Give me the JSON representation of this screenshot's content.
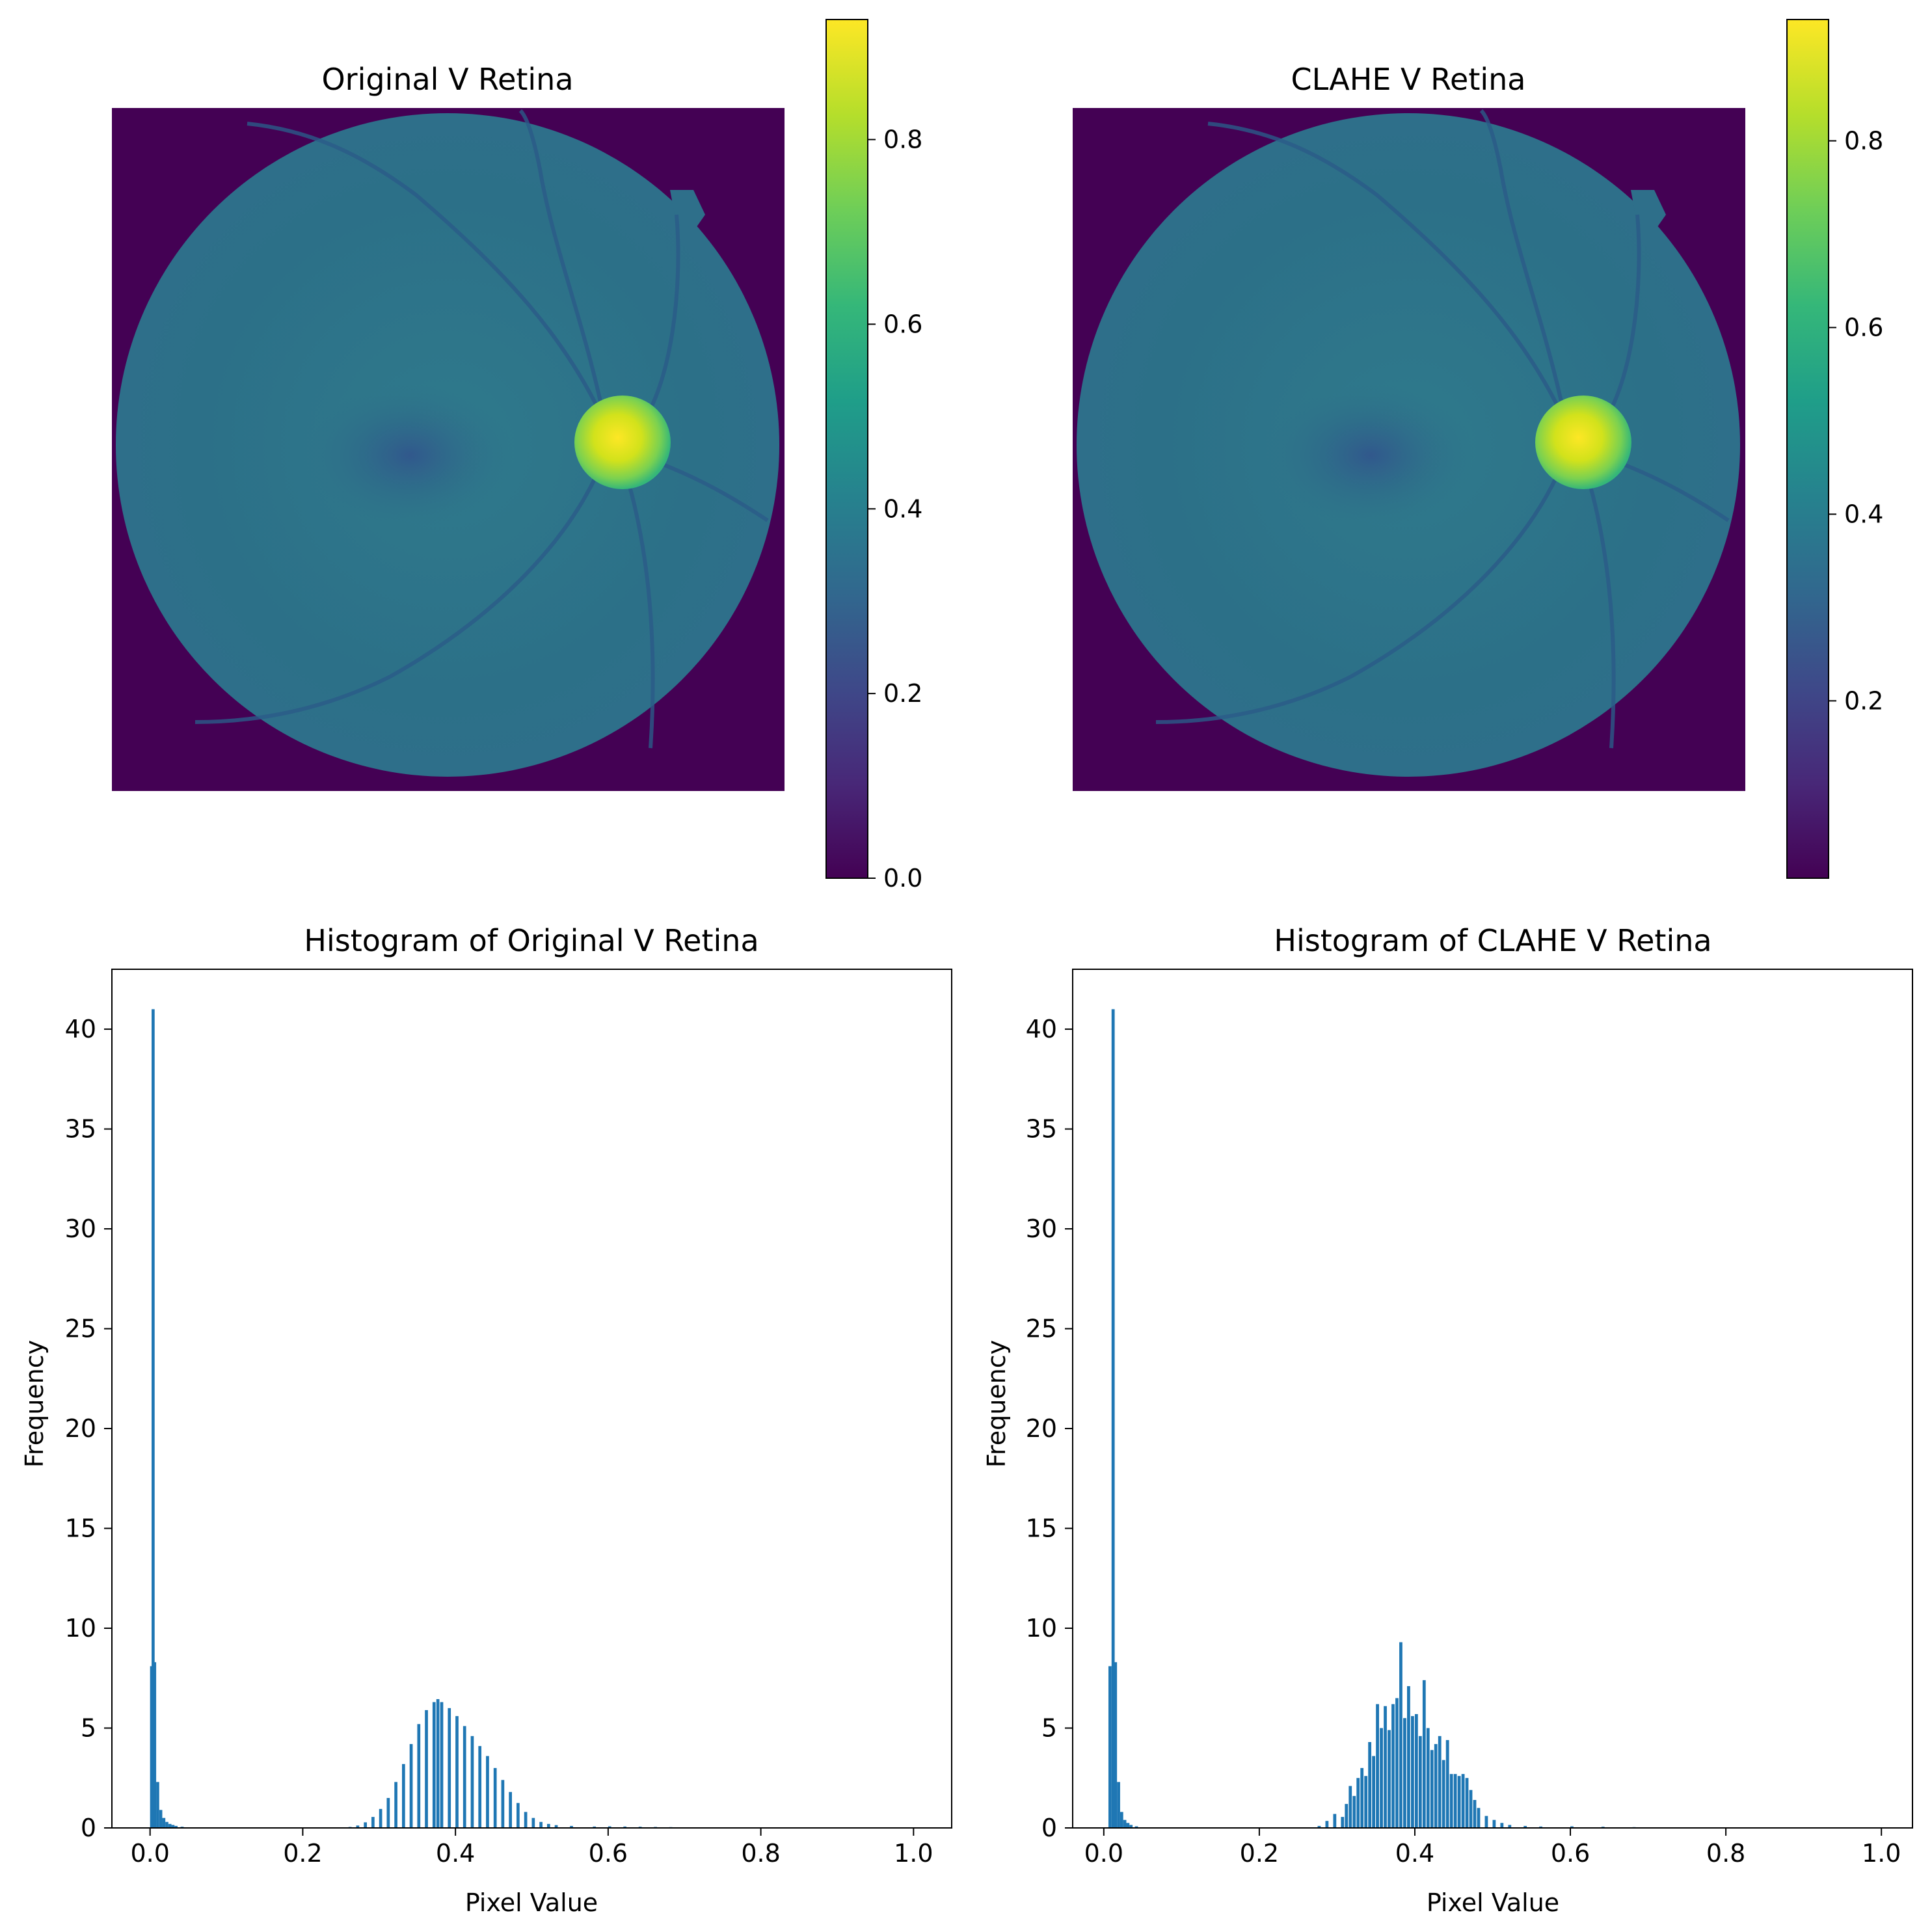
{
  "colors": {
    "bar": "#1f77b4",
    "background_mask": "#440154",
    "viridis": [
      "#440154",
      "#482878",
      "#3e4989",
      "#31688e",
      "#26828e",
      "#1f9e89",
      "#35b779",
      "#6ece58",
      "#b5de2b",
      "#fde725"
    ]
  },
  "images": [
    {
      "title": "Original V Retina",
      "colorbar": {
        "ticks": [
          "0.0",
          "0.2",
          "0.4",
          "0.6",
          "0.8"
        ],
        "range": [
          0.0,
          0.93
        ]
      }
    },
    {
      "title": "CLAHE V Retina",
      "colorbar": {
        "ticks": [
          "0.2",
          "0.4",
          "0.6",
          "0.8"
        ],
        "range": [
          0.01,
          0.93
        ]
      }
    }
  ],
  "chart_data": [
    {
      "type": "bar",
      "title": "Histogram of Original V Retina",
      "xlabel": "Pixel Value",
      "ylabel": "Frequency",
      "xlim": [
        -0.05,
        1.05
      ],
      "ylim": [
        0,
        43
      ],
      "xticks": [
        "0.0",
        "0.2",
        "0.4",
        "0.6",
        "0.8",
        "1.0"
      ],
      "yticks": [
        "0",
        "5",
        "10",
        "15",
        "20",
        "25",
        "30",
        "35",
        "40"
      ],
      "bin_width": 0.004,
      "values": [
        [
          0.0,
          8.1
        ],
        [
          0.002,
          41.0
        ],
        [
          0.004,
          8.3
        ],
        [
          0.008,
          2.3
        ],
        [
          0.012,
          0.9
        ],
        [
          0.016,
          0.5
        ],
        [
          0.02,
          0.3
        ],
        [
          0.024,
          0.2
        ],
        [
          0.028,
          0.15
        ],
        [
          0.032,
          0.1
        ],
        [
          0.04,
          0.06
        ],
        [
          0.05,
          0.03
        ],
        [
          0.26,
          0.05
        ],
        [
          0.27,
          0.12
        ],
        [
          0.28,
          0.28
        ],
        [
          0.29,
          0.55
        ],
        [
          0.3,
          0.95
        ],
        [
          0.31,
          1.5
        ],
        [
          0.32,
          2.3
        ],
        [
          0.33,
          3.2
        ],
        [
          0.34,
          4.2
        ],
        [
          0.35,
          5.2
        ],
        [
          0.36,
          5.9
        ],
        [
          0.37,
          6.3
        ],
        [
          0.375,
          6.45
        ],
        [
          0.38,
          6.3
        ],
        [
          0.39,
          6.0
        ],
        [
          0.4,
          5.6
        ],
        [
          0.41,
          5.1
        ],
        [
          0.42,
          4.6
        ],
        [
          0.43,
          4.1
        ],
        [
          0.44,
          3.6
        ],
        [
          0.45,
          3.0
        ],
        [
          0.46,
          2.4
        ],
        [
          0.47,
          1.8
        ],
        [
          0.48,
          1.25
        ],
        [
          0.49,
          0.8
        ],
        [
          0.5,
          0.5
        ],
        [
          0.51,
          0.3
        ],
        [
          0.52,
          0.2
        ],
        [
          0.53,
          0.14
        ],
        [
          0.55,
          0.1
        ],
        [
          0.58,
          0.07
        ],
        [
          0.6,
          0.08
        ],
        [
          0.62,
          0.07
        ],
        [
          0.64,
          0.06
        ],
        [
          0.66,
          0.05
        ],
        [
          0.68,
          0.04
        ],
        [
          0.7,
          0.03
        ],
        [
          0.72,
          0.02
        ]
      ]
    },
    {
      "type": "bar",
      "title": "Histogram of CLAHE V Retina",
      "xlabel": "Pixel Value",
      "ylabel": "Frequency",
      "xlim": [
        -0.04,
        1.04
      ],
      "ylim": [
        0,
        43
      ],
      "xticks": [
        "0.0",
        "0.2",
        "0.4",
        "0.6",
        "0.8",
        "1.0"
      ],
      "yticks": [
        "0",
        "5",
        "10",
        "15",
        "20",
        "25",
        "30",
        "35",
        "40"
      ],
      "bin_width": 0.004,
      "values": [
        [
          0.006,
          8.1
        ],
        [
          0.01,
          41.0
        ],
        [
          0.013,
          8.3
        ],
        [
          0.017,
          2.3
        ],
        [
          0.021,
          0.8
        ],
        [
          0.025,
          0.4
        ],
        [
          0.029,
          0.25
        ],
        [
          0.033,
          0.15
        ],
        [
          0.04,
          0.08
        ],
        [
          0.05,
          0.03
        ],
        [
          0.275,
          0.1
        ],
        [
          0.285,
          0.35
        ],
        [
          0.295,
          0.7
        ],
        [
          0.305,
          0.55
        ],
        [
          0.31,
          1.2
        ],
        [
          0.315,
          2.1
        ],
        [
          0.32,
          1.6
        ],
        [
          0.325,
          2.5
        ],
        [
          0.33,
          3.0
        ],
        [
          0.335,
          2.6
        ],
        [
          0.34,
          4.3
        ],
        [
          0.345,
          3.6
        ],
        [
          0.35,
          6.2
        ],
        [
          0.355,
          5.0
        ],
        [
          0.36,
          6.1
        ],
        [
          0.365,
          4.9
        ],
        [
          0.37,
          6.2
        ],
        [
          0.375,
          6.5
        ],
        [
          0.38,
          9.3
        ],
        [
          0.385,
          5.5
        ],
        [
          0.39,
          7.1
        ],
        [
          0.395,
          5.6
        ],
        [
          0.4,
          5.7
        ],
        [
          0.405,
          4.6
        ],
        [
          0.41,
          7.4
        ],
        [
          0.415,
          5.0
        ],
        [
          0.42,
          3.9
        ],
        [
          0.425,
          4.2
        ],
        [
          0.43,
          4.6
        ],
        [
          0.435,
          3.4
        ],
        [
          0.44,
          4.4
        ],
        [
          0.445,
          2.7
        ],
        [
          0.45,
          2.7
        ],
        [
          0.455,
          2.6
        ],
        [
          0.46,
          2.7
        ],
        [
          0.465,
          2.5
        ],
        [
          0.47,
          1.9
        ],
        [
          0.475,
          1.4
        ],
        [
          0.48,
          1.0
        ],
        [
          0.49,
          0.6
        ],
        [
          0.5,
          0.4
        ],
        [
          0.51,
          0.25
        ],
        [
          0.52,
          0.15
        ],
        [
          0.54,
          0.1
        ],
        [
          0.56,
          0.07
        ],
        [
          0.6,
          0.08
        ],
        [
          0.64,
          0.06
        ],
        [
          0.68,
          0.04
        ],
        [
          0.72,
          0.02
        ]
      ]
    }
  ]
}
